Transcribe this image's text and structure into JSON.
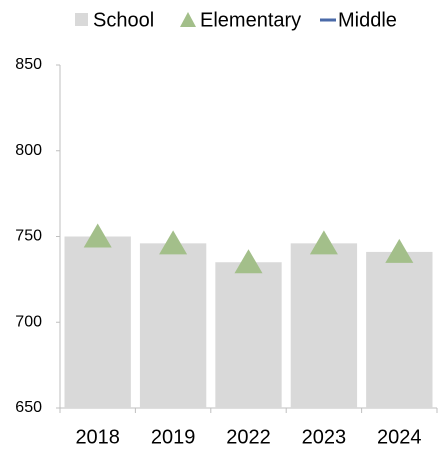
{
  "chart_data": {
    "type": "bar",
    "categories": [
      "2018",
      "2019",
      "2022",
      "2023",
      "2024"
    ],
    "series": [
      {
        "name": "School",
        "color": "#d9d9d9",
        "values": [
          750,
          746,
          735,
          746,
          741
        ]
      },
      {
        "name": "Elementary",
        "color": "#a3bf8a",
        "values": [
          750,
          746,
          735,
          746,
          741
        ]
      },
      {
        "name": "Middle",
        "color": "#4a6aa8",
        "values": [
          null,
          null,
          null,
          null,
          null
        ]
      }
    ],
    "ylim": [
      650,
      850
    ],
    "yticks": [
      650,
      700,
      750,
      800,
      850
    ],
    "grid": false
  }
}
